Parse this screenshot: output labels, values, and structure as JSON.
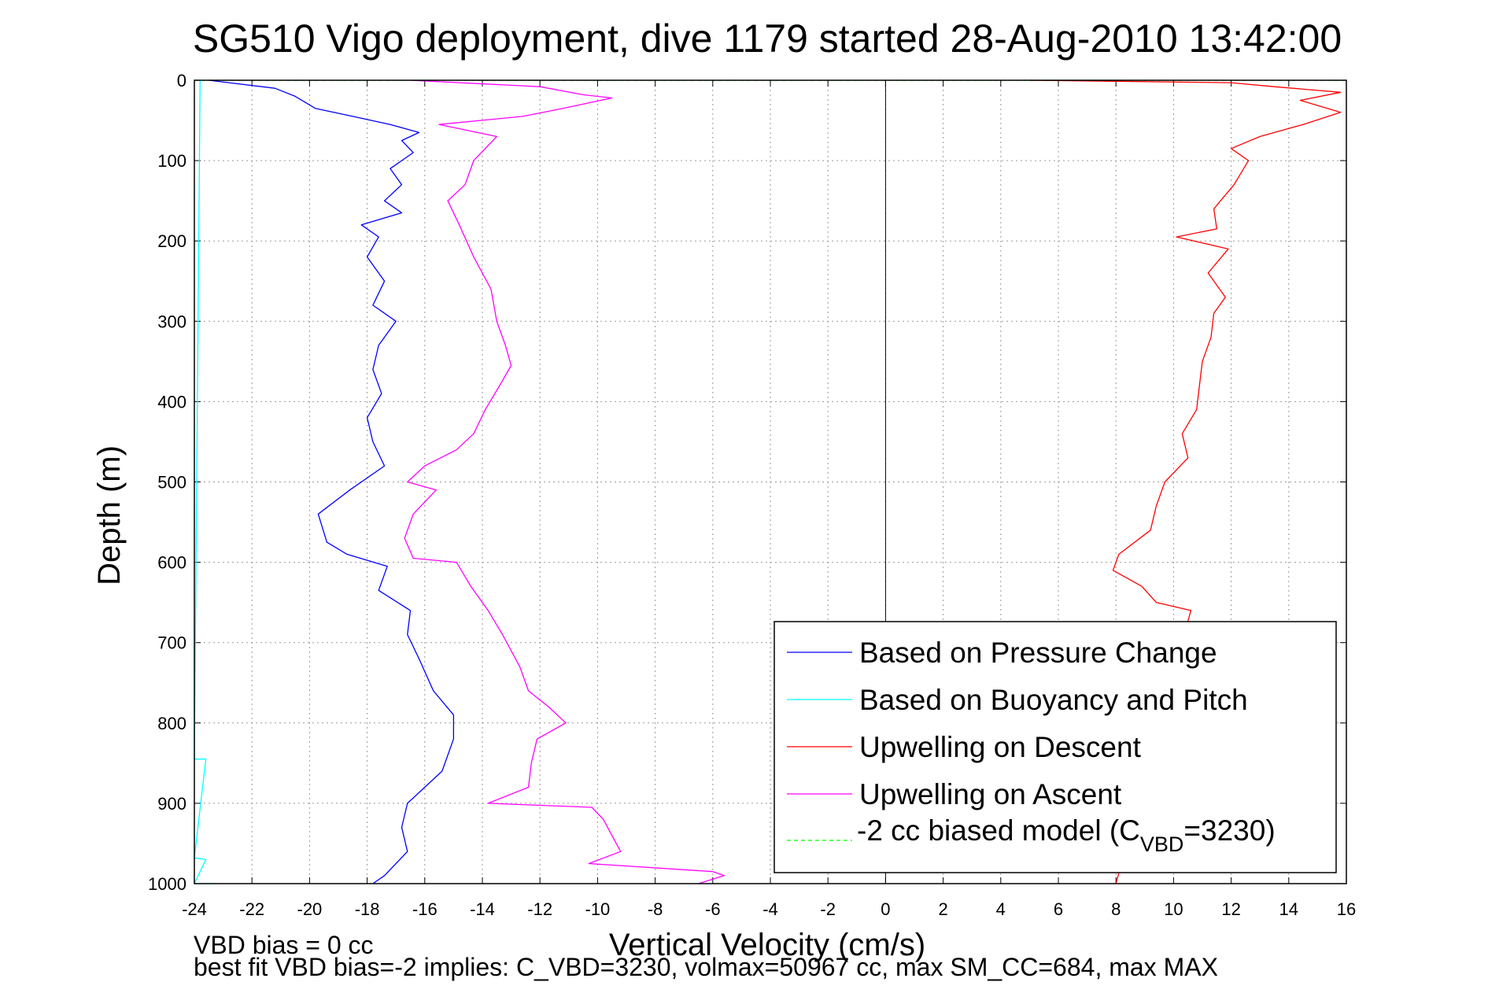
{
  "chart_data": {
    "type": "line",
    "title": "SG510 Vigo deployment, dive 1179 started 28-Aug-2010 13:42:00",
    "xlabel": "Vertical Velocity (cm/s)",
    "ylabel": "Depth (m)",
    "xlim": [
      -24,
      16
    ],
    "ylim": [
      0,
      1000
    ],
    "y_reversed": true,
    "grid": true,
    "legend_position": "bottom-right",
    "x_ticks": [
      "-24",
      "-22",
      "-20",
      "-18",
      "-16",
      "-14",
      "-12",
      "-10",
      "-8",
      "-6",
      "-4",
      "-2",
      "0",
      "2",
      "4",
      "6",
      "8",
      "10",
      "12",
      "14",
      "16"
    ],
    "y_ticks": [
      "0",
      "100",
      "200",
      "300",
      "400",
      "500",
      "600",
      "700",
      "800",
      "900",
      "1000"
    ],
    "legend": {
      "pressure": "Based on Pressure Change",
      "buoyancy": "Based on Buoyancy and Pitch",
      "descent": "Upwelling on Descent",
      "ascent": "Upwelling on Ascent",
      "biased_pre": "-2 cc biased model (C",
      "biased_sub": "VBD",
      "biased_post": "=3230)"
    },
    "series": [
      {
        "name": "Based on Pressure Change",
        "color": "#0000ff",
        "points": [
          [
            -23.5,
            0
          ],
          [
            -21.2,
            10
          ],
          [
            -20.5,
            20
          ],
          [
            -19.8,
            35
          ],
          [
            -18.5,
            45
          ],
          [
            -17.2,
            55
          ],
          [
            -16.2,
            65
          ],
          [
            -16.8,
            75
          ],
          [
            -16.4,
            90
          ],
          [
            -17.2,
            110
          ],
          [
            -16.8,
            130
          ],
          [
            -17.4,
            150
          ],
          [
            -16.8,
            165
          ],
          [
            -18.2,
            180
          ],
          [
            -17.6,
            195
          ],
          [
            -18.0,
            220
          ],
          [
            -17.4,
            250
          ],
          [
            -17.8,
            280
          ],
          [
            -17.0,
            300
          ],
          [
            -17.6,
            330
          ],
          [
            -17.8,
            360
          ],
          [
            -17.5,
            390
          ],
          [
            -18.0,
            420
          ],
          [
            -17.8,
            450
          ],
          [
            -17.4,
            480
          ],
          [
            -18.6,
            510
          ],
          [
            -19.7,
            540
          ],
          [
            -19.4,
            575
          ],
          [
            -18.7,
            590
          ],
          [
            -17.3,
            605
          ],
          [
            -17.6,
            635
          ],
          [
            -16.5,
            660
          ],
          [
            -16.6,
            690
          ],
          [
            -16.2,
            720
          ],
          [
            -15.7,
            760
          ],
          [
            -15.0,
            790
          ],
          [
            -15.0,
            820
          ],
          [
            -15.4,
            860
          ],
          [
            -16.0,
            880
          ],
          [
            -16.6,
            900
          ],
          [
            -16.8,
            930
          ],
          [
            -16.6,
            960
          ],
          [
            -17.4,
            990
          ],
          [
            -17.8,
            1000
          ]
        ]
      },
      {
        "name": "Based on Buoyancy and Pitch",
        "color": "#00ffff",
        "points": [
          [
            -24,
            0
          ],
          [
            -23.8,
            0
          ],
          [
            -24,
            845
          ],
          [
            -23.6,
            845
          ],
          [
            -24,
            968
          ],
          [
            -23.6,
            970
          ],
          [
            -24,
            1000
          ],
          [
            -23.2,
            1000
          ]
        ]
      },
      {
        "name": "Upwelling on Descent",
        "color": "#ff0000",
        "points": [
          [
            5.0,
            0
          ],
          [
            12.0,
            3
          ],
          [
            13.5,
            8
          ],
          [
            15.8,
            15
          ],
          [
            14.4,
            25
          ],
          [
            15.8,
            40
          ],
          [
            14.5,
            55
          ],
          [
            13.0,
            70
          ],
          [
            12.0,
            85
          ],
          [
            12.6,
            100
          ],
          [
            12.1,
            130
          ],
          [
            11.4,
            160
          ],
          [
            11.5,
            185
          ],
          [
            10.1,
            195
          ],
          [
            11.9,
            210
          ],
          [
            11.2,
            240
          ],
          [
            11.8,
            270
          ],
          [
            11.4,
            290
          ],
          [
            11.3,
            320
          ],
          [
            11.0,
            350
          ],
          [
            10.9,
            380
          ],
          [
            10.8,
            410
          ],
          [
            10.3,
            440
          ],
          [
            10.5,
            470
          ],
          [
            9.7,
            500
          ],
          [
            9.4,
            530
          ],
          [
            9.2,
            560
          ],
          [
            8.1,
            590
          ],
          [
            7.9,
            610
          ],
          [
            8.9,
            630
          ],
          [
            9.4,
            650
          ],
          [
            10.6,
            660
          ],
          [
            8.0,
            1000
          ]
        ]
      },
      {
        "name": "Upwelling on Ascent",
        "color": "#ff00ff",
        "points": [
          [
            -16.5,
            0
          ],
          [
            -12,
            8
          ],
          [
            -10.5,
            18
          ],
          [
            -9.5,
            22
          ],
          [
            -11.2,
            35
          ],
          [
            -12.6,
            45
          ],
          [
            -15.5,
            55
          ],
          [
            -13.5,
            70
          ],
          [
            -14.3,
            100
          ],
          [
            -14.6,
            130
          ],
          [
            -15.2,
            150
          ],
          [
            -14.8,
            180
          ],
          [
            -14.3,
            220
          ],
          [
            -13.7,
            260
          ],
          [
            -13.5,
            300
          ],
          [
            -13.2,
            330
          ],
          [
            -13.0,
            355
          ],
          [
            -13.4,
            380
          ],
          [
            -13.9,
            410
          ],
          [
            -14.3,
            440
          ],
          [
            -14.9,
            460
          ],
          [
            -16.0,
            480
          ],
          [
            -16.6,
            500
          ],
          [
            -15.6,
            510
          ],
          [
            -16.4,
            540
          ],
          [
            -16.7,
            570
          ],
          [
            -16.4,
            595
          ],
          [
            -14.9,
            600
          ],
          [
            -14.4,
            630
          ],
          [
            -13.8,
            660
          ],
          [
            -13.3,
            690
          ],
          [
            -12.7,
            730
          ],
          [
            -12.4,
            760
          ],
          [
            -11.7,
            780
          ],
          [
            -11.1,
            800
          ],
          [
            -12.1,
            820
          ],
          [
            -12.3,
            850
          ],
          [
            -12.4,
            880
          ],
          [
            -13.8,
            900
          ],
          [
            -10.2,
            905
          ],
          [
            -9.8,
            920
          ],
          [
            -9.2,
            960
          ],
          [
            -10.3,
            975
          ],
          [
            -6.0,
            985
          ],
          [
            -5.6,
            990
          ],
          [
            -6.5,
            1000
          ]
        ]
      },
      {
        "name": "-2 cc biased model (C_VBD=3230)",
        "color": "#00ff00",
        "points": [
          [
            -24,
            0
          ],
          [
            16,
            0
          ]
        ]
      }
    ]
  },
  "annotations": {
    "vbd_bias": "VBD bias = 0 cc",
    "best_fit": "best fit VBD bias=-2 implies: C_VBD=3230, volmax=50967 cc, max SM_CC=684, max MAX"
  }
}
